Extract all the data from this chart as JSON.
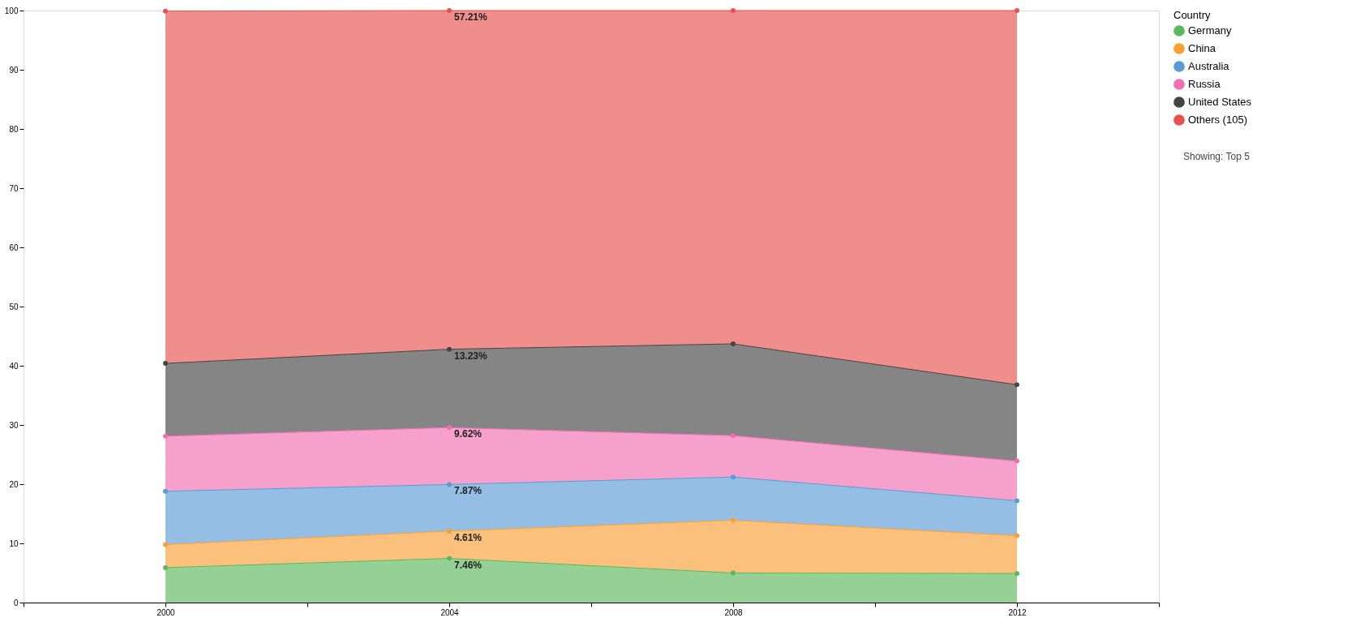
{
  "chart_data": {
    "type": "area",
    "stacked": true,
    "legend_title": "Country",
    "legend": "top right",
    "marker": "circle",
    "grid": false,
    "x": [
      2000,
      2004,
      2008,
      2012
    ],
    "xlim": [
      1998,
      2014
    ],
    "xticks": [
      {
        "value": 1998,
        "label": null
      },
      2000,
      {
        "value": 2002,
        "label": null
      },
      2004,
      {
        "value": 2006,
        "label": null
      },
      2008,
      {
        "value": 2010,
        "label": null
      },
      2012,
      {
        "value": 2014,
        "label": null
      }
    ],
    "ylim": [
      0,
      100
    ],
    "yticks": [
      0,
      10,
      20,
      30,
      40,
      50,
      60,
      70,
      80,
      90,
      100
    ],
    "series": [
      {
        "name": "Germany",
        "color": "#5cb85c",
        "values": [
          5.9,
          7.46,
          5.0,
          4.9
        ],
        "value_labels": [
          null,
          "7.46%",
          null,
          null
        ]
      },
      {
        "name": "China",
        "color": "#f9a035",
        "values": [
          3.9,
          4.61,
          8.9,
          6.4
        ],
        "value_labels": [
          null,
          "4.61%",
          null,
          null
        ]
      },
      {
        "name": "Australia",
        "color": "#5a9bd5",
        "values": [
          9.0,
          7.87,
          7.3,
          5.9
        ],
        "value_labels": [
          null,
          "7.87%",
          null,
          null
        ]
      },
      {
        "name": "Russia",
        "color": "#f06fb0",
        "values": [
          9.3,
          9.62,
          7.0,
          6.7
        ],
        "value_labels": [
          null,
          "9.62%",
          null,
          null
        ]
      },
      {
        "name": "United States",
        "color": "#444444",
        "values": [
          12.3,
          13.23,
          15.5,
          12.9
        ],
        "value_labels": [
          null,
          "13.23%",
          null,
          null
        ]
      },
      {
        "name": "Others (105)",
        "color": "#e8514f",
        "values": [
          59.5,
          57.21,
          56.3,
          63.2
        ],
        "value_labels": [
          null,
          "57.21%",
          null,
          null
        ]
      }
    ],
    "annotations": [
      "Showing: Top 5"
    ]
  }
}
